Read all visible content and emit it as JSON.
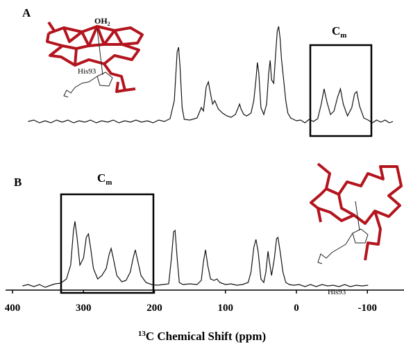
{
  "chart_data": {
    "type": "line",
    "xlabel": {
      "sup": "13",
      "text": "C Chemical Shift (ppm)"
    },
    "xlim": [
      418,
      -152
    ],
    "xticks": [
      400,
      300,
      200,
      100,
      0,
      -100
    ],
    "box_label": {
      "text": "C",
      "sub": "m"
    },
    "ligand": {
      "text": "OH",
      "sub": "2"
    },
    "residue": "His93",
    "series": [
      {
        "name": "A",
        "color": "#111",
        "ylim": [
          -10,
          140
        ],
        "x": [
          378,
          370,
          362,
          354,
          346,
          338,
          330,
          322,
          314,
          306,
          298,
          290,
          282,
          274,
          266,
          258,
          250,
          242,
          234,
          226,
          218,
          210,
          202,
          194,
          186,
          178,
          172,
          168,
          166,
          164,
          161,
          158,
          150,
          140,
          134,
          131,
          127,
          124,
          121,
          118,
          115,
          110,
          104,
          98,
          92,
          86,
          82,
          80,
          78,
          74,
          70,
          64,
          60,
          57,
          55,
          53,
          50,
          46,
          42,
          39,
          37,
          35,
          32,
          29,
          27,
          25,
          23,
          21,
          18,
          15,
          12,
          8,
          4,
          0,
          -6,
          -12,
          -18,
          -24,
          -30,
          -35,
          -39,
          -43,
          -48,
          -53,
          -58,
          -62,
          -66,
          -72,
          -78,
          -82,
          -85,
          -89,
          -95,
          -101,
          -107,
          -113,
          -119,
          -125,
          -131,
          -136
        ],
        "values": [
          0,
          2,
          -2,
          1,
          -2,
          2,
          -1,
          2,
          -2,
          1,
          -1,
          2,
          -2,
          1,
          -1,
          2,
          -2,
          1,
          -1,
          2,
          -1,
          1,
          -2,
          2,
          0,
          4,
          30,
          100,
          107,
          80,
          20,
          3,
          2,
          5,
          20,
          15,
          50,
          57,
          40,
          25,
          30,
          18,
          12,
          8,
          6,
          10,
          20,
          25,
          18,
          10,
          8,
          12,
          30,
          60,
          85,
          70,
          20,
          10,
          25,
          70,
          88,
          60,
          55,
          100,
          130,
          137,
          120,
          90,
          60,
          30,
          12,
          5,
          3,
          1,
          2,
          -2,
          3,
          0,
          4,
          25,
          47,
          28,
          10,
          15,
          35,
          47,
          25,
          8,
          20,
          40,
          43,
          22,
          5,
          2,
          -2,
          2,
          -1,
          2,
          -2,
          0
        ]
      },
      {
        "name": "B",
        "color": "#111",
        "ylim": [
          -10,
          140
        ],
        "x": [
          386,
          378,
          370,
          362,
          354,
          346,
          340,
          332,
          324,
          318,
          314,
          312,
          309,
          305,
          300,
          296,
          293,
          290,
          286,
          280,
          274,
          268,
          264,
          261,
          258,
          253,
          246,
          240,
          234,
          230,
          227,
          224,
          219,
          212,
          204,
          196,
          188,
          180,
          176,
          173,
          171,
          168,
          165,
          160,
          150,
          140,
          134,
          131,
          128,
          125,
          121,
          116,
          112,
          108,
          100,
          92,
          84,
          76,
          68,
          64,
          60,
          57,
          54,
          50,
          46,
          43,
          40,
          38,
          35,
          31,
          28,
          26,
          23,
          19,
          15,
          10,
          4,
          -4,
          -12,
          -20,
          -28,
          -36,
          -44,
          -52,
          -60,
          -68,
          -76,
          -84,
          -92,
          -101
        ],
        "values": [
          0,
          2,
          -1,
          2,
          -2,
          1,
          3,
          4,
          10,
          30,
          80,
          93,
          70,
          30,
          40,
          70,
          75,
          55,
          25,
          10,
          15,
          25,
          45,
          54,
          40,
          15,
          6,
          8,
          20,
          40,
          52,
          38,
          15,
          5,
          2,
          1,
          2,
          3,
          40,
          78,
          80,
          40,
          5,
          2,
          3,
          2,
          8,
          35,
          52,
          30,
          10,
          8,
          10,
          5,
          2,
          3,
          1,
          2,
          5,
          20,
          55,
          67,
          50,
          10,
          5,
          20,
          50,
          35,
          15,
          40,
          68,
          70,
          50,
          20,
          5,
          2,
          1,
          2,
          -1,
          2,
          -1,
          2,
          0,
          1,
          -1,
          2,
          -1,
          1,
          0,
          1
        ]
      }
    ]
  }
}
